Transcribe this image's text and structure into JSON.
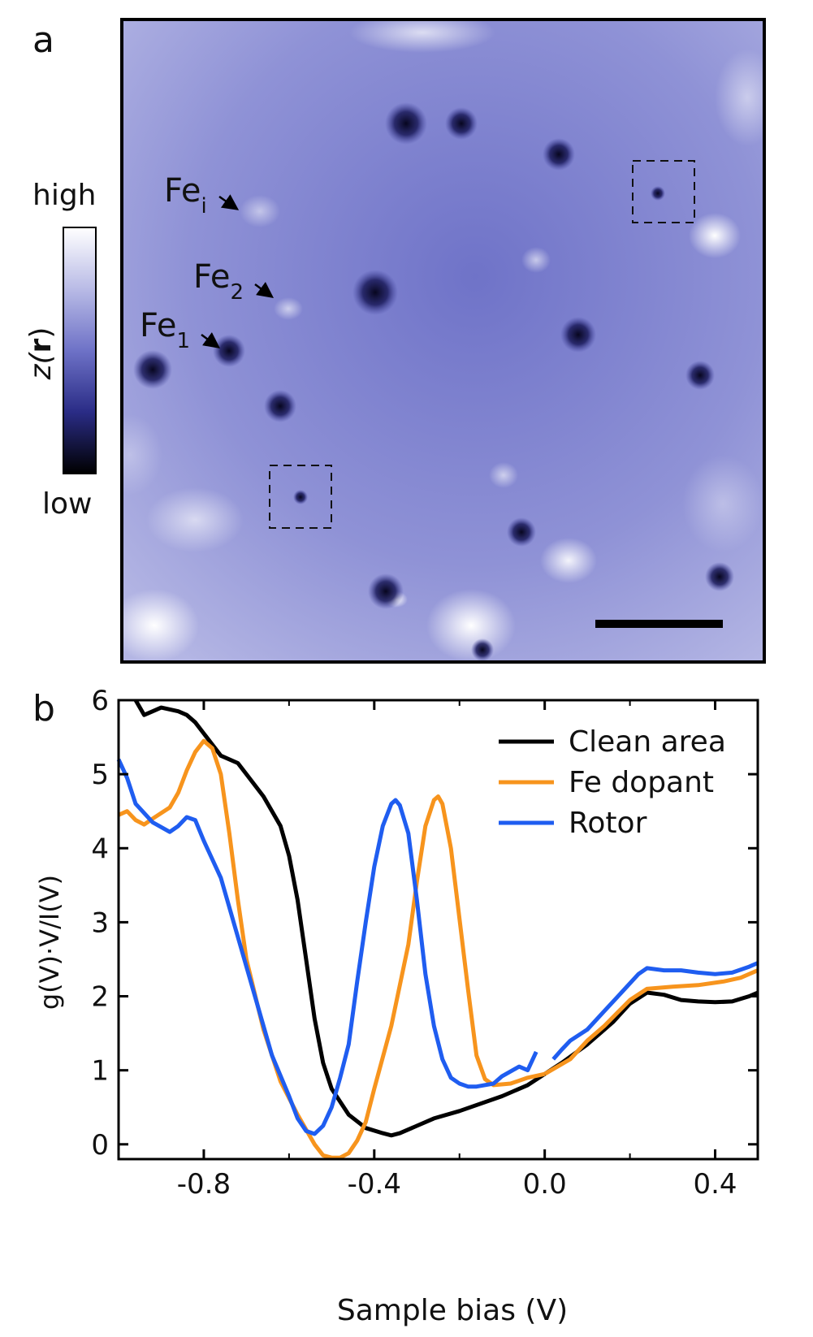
{
  "panel_a": {
    "label": "a",
    "colorbar": {
      "high": "high",
      "low": "low",
      "quantity": "z(r)",
      "quantity_prefix": "z(",
      "quantity_bold": "r",
      "quantity_suffix": ")"
    },
    "annotations": [
      {
        "id": "fe-i",
        "base": "Fe",
        "sub": "i"
      },
      {
        "id": "fe-2",
        "base": "Fe",
        "sub": "2"
      },
      {
        "id": "fe-1",
        "base": "Fe",
        "sub": "1"
      }
    ],
    "colors": {
      "surface": "#7b7fcf",
      "surface_light": "#c7c9ee",
      "defect": "#0b0a2e",
      "scale_bar": "#000000"
    }
  },
  "chart_data": {
    "type": "line",
    "panel_label": "b",
    "xlabel": "Sample bias (V)",
    "ylabel": "g(V)·V/I(V)",
    "xlim": [
      -1.0,
      0.5
    ],
    "ylim": [
      -0.2,
      6.0
    ],
    "xticks": [
      -0.8,
      -0.4,
      0.0,
      0.4
    ],
    "xtick_labels": [
      "-0.8",
      "-0.4",
      "0.0",
      "0.4"
    ],
    "yticks": [
      0,
      1,
      2,
      3,
      4,
      5,
      6
    ],
    "ytick_labels": [
      "0",
      "1",
      "2",
      "3",
      "4",
      "5",
      "6"
    ],
    "legend_position": "top-right",
    "series": [
      {
        "name": "Clean area",
        "color": "#000000",
        "segments": [
          [
            [
              -0.96,
              6.0
            ],
            [
              -0.94,
              5.8
            ],
            [
              -0.92,
              5.85
            ],
            [
              -0.9,
              5.9
            ],
            [
              -0.86,
              5.85
            ],
            [
              -0.84,
              5.8
            ],
            [
              -0.82,
              5.7
            ],
            [
              -0.8,
              5.55
            ],
            [
              -0.78,
              5.4
            ],
            [
              -0.76,
              5.25
            ],
            [
              -0.72,
              5.15
            ],
            [
              -0.7,
              5.0
            ],
            [
              -0.66,
              4.7
            ],
            [
              -0.62,
              4.3
            ],
            [
              -0.6,
              3.9
            ],
            [
              -0.58,
              3.3
            ],
            [
              -0.56,
              2.5
            ],
            [
              -0.54,
              1.7
            ],
            [
              -0.52,
              1.1
            ],
            [
              -0.5,
              0.75
            ],
            [
              -0.46,
              0.4
            ],
            [
              -0.42,
              0.22
            ],
            [
              -0.38,
              0.15
            ],
            [
              -0.36,
              0.12
            ],
            [
              -0.34,
              0.15
            ],
            [
              -0.3,
              0.25
            ],
            [
              -0.26,
              0.35
            ],
            [
              -0.2,
              0.45
            ],
            [
              -0.1,
              0.65
            ],
            [
              -0.04,
              0.8
            ],
            [
              0.0,
              0.95
            ]
          ],
          [
            [
              0.0,
              0.95
            ],
            [
              0.04,
              1.1
            ],
            [
              0.1,
              1.35
            ],
            [
              0.16,
              1.65
            ],
            [
              0.2,
              1.9
            ],
            [
              0.24,
              2.05
            ],
            [
              0.28,
              2.02
            ],
            [
              0.32,
              1.95
            ],
            [
              0.36,
              1.93
            ],
            [
              0.4,
              1.92
            ],
            [
              0.44,
              1.93
            ],
            [
              0.48,
              2.0
            ],
            [
              0.5,
              2.05
            ]
          ]
        ]
      },
      {
        "name": "Fe dopant",
        "color": "#f7941d",
        "segments": [
          [
            [
              -1.0,
              4.45
            ],
            [
              -0.98,
              4.5
            ],
            [
              -0.96,
              4.38
            ],
            [
              -0.94,
              4.32
            ],
            [
              -0.92,
              4.4
            ],
            [
              -0.88,
              4.55
            ],
            [
              -0.86,
              4.75
            ],
            [
              -0.84,
              5.05
            ],
            [
              -0.82,
              5.3
            ],
            [
              -0.8,
              5.45
            ],
            [
              -0.78,
              5.35
            ],
            [
              -0.76,
              5.0
            ],
            [
              -0.74,
              4.2
            ],
            [
              -0.72,
              3.3
            ],
            [
              -0.7,
              2.5
            ],
            [
              -0.66,
              1.55
            ],
            [
              -0.62,
              0.85
            ],
            [
              -0.58,
              0.4
            ],
            [
              -0.54,
              0.0
            ],
            [
              -0.52,
              -0.15
            ],
            [
              -0.5,
              -0.18
            ],
            [
              -0.48,
              -0.18
            ],
            [
              -0.46,
              -0.12
            ],
            [
              -0.44,
              0.05
            ],
            [
              -0.42,
              0.3
            ],
            [
              -0.4,
              0.75
            ],
            [
              -0.36,
              1.6
            ],
            [
              -0.32,
              2.7
            ],
            [
              -0.3,
              3.55
            ],
            [
              -0.28,
              4.3
            ],
            [
              -0.26,
              4.65
            ],
            [
              -0.25,
              4.7
            ],
            [
              -0.24,
              4.6
            ],
            [
              -0.22,
              4.0
            ],
            [
              -0.2,
              3.05
            ],
            [
              -0.18,
              2.1
            ],
            [
              -0.16,
              1.2
            ],
            [
              -0.14,
              0.88
            ],
            [
              -0.12,
              0.8
            ],
            [
              -0.08,
              0.82
            ],
            [
              -0.04,
              0.9
            ],
            [
              0.0,
              0.95
            ]
          ],
          [
            [
              0.0,
              0.95
            ],
            [
              0.06,
              1.15
            ],
            [
              0.1,
              1.4
            ],
            [
              0.14,
              1.6
            ],
            [
              0.2,
              1.95
            ],
            [
              0.24,
              2.1
            ],
            [
              0.3,
              2.13
            ],
            [
              0.36,
              2.15
            ],
            [
              0.42,
              2.2
            ],
            [
              0.46,
              2.25
            ],
            [
              0.5,
              2.35
            ]
          ]
        ]
      },
      {
        "name": "Rotor",
        "color": "#1f5df0",
        "segments": [
          [
            [
              -1.0,
              5.2
            ],
            [
              -0.98,
              4.95
            ],
            [
              -0.96,
              4.6
            ],
            [
              -0.92,
              4.35
            ],
            [
              -0.88,
              4.22
            ],
            [
              -0.86,
              4.3
            ],
            [
              -0.84,
              4.42
            ],
            [
              -0.82,
              4.38
            ],
            [
              -0.8,
              4.1
            ],
            [
              -0.76,
              3.6
            ],
            [
              -0.72,
              2.8
            ],
            [
              -0.68,
              2.0
            ],
            [
              -0.64,
              1.2
            ],
            [
              -0.6,
              0.65
            ],
            [
              -0.58,
              0.35
            ],
            [
              -0.56,
              0.18
            ],
            [
              -0.54,
              0.14
            ],
            [
              -0.52,
              0.25
            ],
            [
              -0.5,
              0.5
            ],
            [
              -0.48,
              0.9
            ],
            [
              -0.46,
              1.35
            ],
            [
              -0.44,
              2.2
            ],
            [
              -0.42,
              3.0
            ],
            [
              -0.4,
              3.75
            ],
            [
              -0.38,
              4.3
            ],
            [
              -0.36,
              4.6
            ],
            [
              -0.35,
              4.65
            ],
            [
              -0.34,
              4.58
            ],
            [
              -0.32,
              4.2
            ],
            [
              -0.3,
              3.3
            ],
            [
              -0.28,
              2.3
            ],
            [
              -0.26,
              1.6
            ],
            [
              -0.24,
              1.15
            ],
            [
              -0.22,
              0.9
            ],
            [
              -0.2,
              0.82
            ],
            [
              -0.18,
              0.78
            ],
            [
              -0.16,
              0.78
            ],
            [
              -0.12,
              0.82
            ],
            [
              -0.1,
              0.92
            ],
            [
              -0.06,
              1.05
            ],
            [
              -0.04,
              1.0
            ],
            [
              -0.02,
              1.25
            ]
          ],
          [
            [
              0.02,
              1.15
            ],
            [
              0.04,
              1.28
            ],
            [
              0.06,
              1.4
            ],
            [
              0.1,
              1.55
            ],
            [
              0.14,
              1.8
            ],
            [
              0.18,
              2.05
            ],
            [
              0.22,
              2.3
            ],
            [
              0.24,
              2.38
            ],
            [
              0.28,
              2.35
            ],
            [
              0.32,
              2.35
            ],
            [
              0.36,
              2.32
            ],
            [
              0.4,
              2.3
            ],
            [
              0.44,
              2.32
            ],
            [
              0.48,
              2.4
            ],
            [
              0.5,
              2.45
            ]
          ]
        ]
      }
    ]
  }
}
